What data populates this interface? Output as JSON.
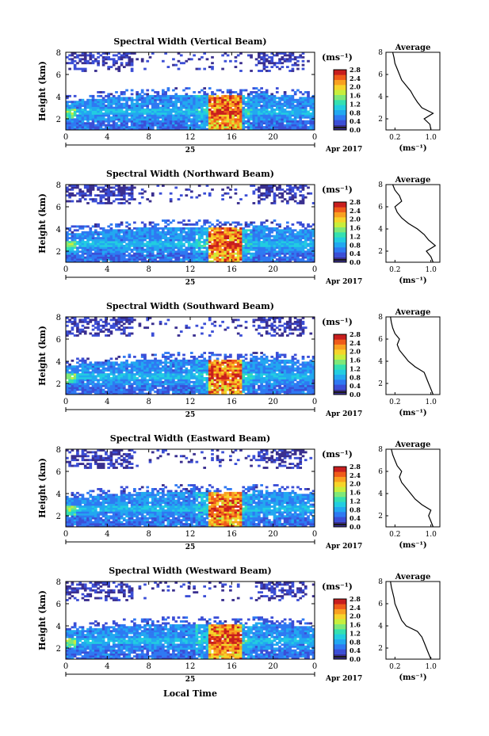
{
  "figure": {
    "date_label": "Apr 2017",
    "day_label": "25",
    "x_axis_title": "Local Time",
    "colorbar_unit": "(ms⁻¹)",
    "average_title": "Average",
    "average_unit": "(ms⁻¹)",
    "colormap": [
      "#3a2f8f",
      "#3b4ed6",
      "#2f79f2",
      "#22a8f0",
      "#22cde0",
      "#35e0b0",
      "#7fe878",
      "#c8ee3c",
      "#f6d42a",
      "#f9a020",
      "#ef5b1a",
      "#c81e1e"
    ],
    "bottom_band_color": "#1a1a1a"
  },
  "chart_data": [
    {
      "type": "heatmap",
      "title": "Spectral Width (Vertical Beam)",
      "ylabel": "Height (km)",
      "xlim": [
        0,
        24
      ],
      "ylim": [
        1,
        8
      ],
      "xticks": [
        "0",
        "4",
        "8",
        "12",
        "16",
        "20",
        "0"
      ],
      "yticks": [
        "2",
        "4",
        "6",
        "8"
      ],
      "colorbar": {
        "ticks": [
          "0.0",
          "0.4",
          "0.8",
          "1.2",
          "1.6",
          "2.0",
          "2.4",
          "2.8"
        ],
        "range": [
          0,
          2.8
        ]
      },
      "profile": {
        "xticks": [
          "0.2",
          "1.0"
        ],
        "yticks": [
          "2",
          "4",
          "6",
          "8"
        ],
        "xlim": [
          0,
          1.2
        ],
        "ylim": [
          1,
          8
        ],
        "height": [
          1.0,
          1.5,
          2.0,
          2.5,
          3.0,
          3.5,
          4.0,
          4.5,
          5.0,
          5.5,
          6.0,
          6.5,
          7.0,
          7.5,
          8.0
        ],
        "value": [
          1.0,
          0.98,
          0.85,
          1.05,
          0.8,
          0.7,
          0.62,
          0.55,
          0.45,
          0.35,
          0.3,
          0.25,
          0.2,
          0.18,
          0.15
        ]
      }
    },
    {
      "type": "heatmap",
      "title": "Spectral Width (Northward Beam)",
      "ylabel": "Height (km)",
      "xlim": [
        0,
        24
      ],
      "ylim": [
        1,
        8
      ],
      "xticks": [
        "0",
        "4",
        "8",
        "12",
        "16",
        "20",
        "0"
      ],
      "yticks": [
        "2",
        "4",
        "6",
        "8"
      ],
      "colorbar": {
        "ticks": [
          "0.0",
          "0.4",
          "0.8",
          "1.2",
          "1.6",
          "2.0",
          "2.4",
          "2.8"
        ],
        "range": [
          0,
          2.8
        ]
      },
      "profile": {
        "xticks": [
          "0.2",
          "1.0"
        ],
        "yticks": [
          "2",
          "4",
          "6",
          "8"
        ],
        "xlim": [
          0,
          1.2
        ],
        "ylim": [
          1,
          8
        ],
        "height": [
          1.0,
          1.5,
          2.0,
          2.5,
          3.0,
          3.5,
          4.0,
          4.5,
          5.0,
          5.5,
          6.0,
          6.5,
          7.0,
          7.5,
          8.0
        ],
        "value": [
          1.05,
          1.0,
          0.9,
          1.1,
          0.95,
          0.85,
          0.7,
          0.5,
          0.35,
          0.25,
          0.2,
          0.35,
          0.3,
          0.2,
          0.15
        ]
      }
    },
    {
      "type": "heatmap",
      "title": "Spectral Width (Southward Beam)",
      "ylabel": "Height (km)",
      "xlim": [
        0,
        24
      ],
      "ylim": [
        1,
        8
      ],
      "xticks": [
        "0",
        "4",
        "8",
        "12",
        "16",
        "20",
        "0"
      ],
      "yticks": [
        "2",
        "4",
        "6",
        "8"
      ],
      "colorbar": {
        "ticks": [
          "0.0",
          "0.4",
          "0.8",
          "1.2",
          "1.6",
          "2.0",
          "2.4",
          "2.8"
        ],
        "range": [
          0,
          2.8
        ]
      },
      "profile": {
        "xticks": [
          "0.2",
          "1.0"
        ],
        "yticks": [
          "2",
          "4",
          "6",
          "8"
        ],
        "xlim": [
          0,
          1.2
        ],
        "ylim": [
          1,
          8
        ],
        "height": [
          1.0,
          1.5,
          2.0,
          2.5,
          3.0,
          3.5,
          4.0,
          4.5,
          5.0,
          5.5,
          6.0,
          6.5,
          7.0,
          7.5,
          8.0
        ],
        "value": [
          1.05,
          1.0,
          0.95,
          0.9,
          0.85,
          0.65,
          0.5,
          0.4,
          0.3,
          0.25,
          0.3,
          0.2,
          0.15,
          0.12,
          0.1
        ]
      }
    },
    {
      "type": "heatmap",
      "title": "Spectral Width (Eastward Beam)",
      "ylabel": "Height (km)",
      "xlim": [
        0,
        24
      ],
      "ylim": [
        1,
        8
      ],
      "xticks": [
        "0",
        "4",
        "8",
        "12",
        "16",
        "20",
        "0"
      ],
      "yticks": [
        "2",
        "4",
        "6",
        "8"
      ],
      "colorbar": {
        "ticks": [
          "0.0",
          "0.4",
          "0.8",
          "1.2",
          "1.6",
          "2.0",
          "2.4",
          "2.8"
        ],
        "range": [
          0,
          2.8
        ]
      },
      "profile": {
        "xticks": [
          "0.2",
          "1.0"
        ],
        "yticks": [
          "2",
          "4",
          "6",
          "8"
        ],
        "xlim": [
          0,
          1.2
        ],
        "ylim": [
          1,
          8
        ],
        "height": [
          1.0,
          1.5,
          2.0,
          2.5,
          3.0,
          3.5,
          4.0,
          4.5,
          5.0,
          5.5,
          6.0,
          6.5,
          7.0,
          7.5,
          8.0
        ],
        "value": [
          1.05,
          1.0,
          0.95,
          1.0,
          0.8,
          0.65,
          0.55,
          0.45,
          0.35,
          0.3,
          0.35,
          0.25,
          0.2,
          0.15,
          0.12
        ]
      }
    },
    {
      "type": "heatmap",
      "title": "Spectral Width (Westward Beam)",
      "ylabel": "Height (km)",
      "xlim": [
        0,
        24
      ],
      "ylim": [
        1,
        8
      ],
      "xticks": [
        "0",
        "4",
        "8",
        "12",
        "16",
        "20",
        "0"
      ],
      "yticks": [
        "2",
        "4",
        "6",
        "8"
      ],
      "colorbar": {
        "ticks": [
          "0.0",
          "0.4",
          "0.8",
          "1.2",
          "1.6",
          "2.0",
          "2.4",
          "2.8"
        ],
        "range": [
          0,
          2.8
        ]
      },
      "profile": {
        "xticks": [
          "0.2",
          "1.0"
        ],
        "yticks": [
          "2",
          "4",
          "6",
          "8"
        ],
        "xlim": [
          0,
          1.2
        ],
        "ylim": [
          1,
          8
        ],
        "height": [
          1.0,
          1.5,
          2.0,
          2.5,
          3.0,
          3.5,
          4.0,
          4.5,
          5.0,
          5.5,
          6.0,
          6.5,
          7.0,
          7.5,
          8.0
        ],
        "value": [
          1.0,
          0.95,
          0.9,
          0.85,
          0.8,
          0.7,
          0.45,
          0.35,
          0.3,
          0.25,
          0.2,
          0.18,
          0.15,
          0.12,
          0.1
        ]
      }
    }
  ]
}
